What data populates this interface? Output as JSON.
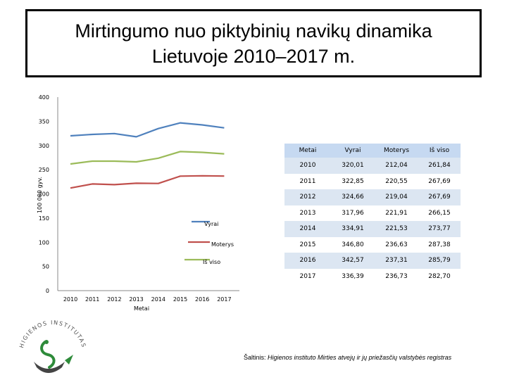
{
  "title": {
    "line1": "Mirtingumo nuo piktybinių navikų dinamika",
    "line2": "Lietuvoje 2010–2017 m."
  },
  "chart_data": {
    "type": "line",
    "x": [
      "2010",
      "2011",
      "2012",
      "2013",
      "2014",
      "2015",
      "2016",
      "2017"
    ],
    "xlabel": "Metai",
    "ylabel": "100 000 gyv.",
    "ylim": [
      0,
      400
    ],
    "yticks": [
      "0",
      "50",
      "100",
      "150",
      "200",
      "250",
      "300",
      "350",
      "400"
    ],
    "grid": false,
    "legend_position": "center-right",
    "series": [
      {
        "name": "Vyrai",
        "color": "#4f81bd",
        "values": [
          320.01,
          322.85,
          324.66,
          317.96,
          334.91,
          346.8,
          342.57,
          336.39
        ]
      },
      {
        "name": "Moterys",
        "color": "#c0504d",
        "values": [
          212.04,
          220.55,
          219.04,
          221.91,
          221.53,
          236.63,
          237.31,
          236.73
        ]
      },
      {
        "name": "Iš viso",
        "color": "#9bbb59",
        "values": [
          261.84,
          267.69,
          267.69,
          266.15,
          273.77,
          287.38,
          285.79,
          282.7
        ]
      }
    ]
  },
  "table": {
    "headers": [
      "Metai",
      "Vyrai",
      "Moterys",
      "Iš viso"
    ],
    "rows": [
      [
        "2010",
        "320,01",
        "212,04",
        "261,84"
      ],
      [
        "2011",
        "322,85",
        "220,55",
        "267,69"
      ],
      [
        "2012",
        "324,66",
        "219,04",
        "267,69"
      ],
      [
        "2013",
        "317,96",
        "221,91",
        "266,15"
      ],
      [
        "2014",
        "334,91",
        "221,53",
        "273,77"
      ],
      [
        "2015",
        "346,80",
        "236,63",
        "287,38"
      ],
      [
        "2016",
        "342,57",
        "237,31",
        "285,79"
      ],
      [
        "2017",
        "336,39",
        "236,73",
        "282,70"
      ]
    ]
  },
  "logo": {
    "text": "HIGIENOS INSTITUTAS",
    "colors": {
      "green": "#2e8b3a",
      "gray": "#555555"
    }
  },
  "source": {
    "prefix": "Šaltinis: ",
    "text": "Higienos instituto Mirties atvejų ir jų priežasčių valstybės registras"
  }
}
